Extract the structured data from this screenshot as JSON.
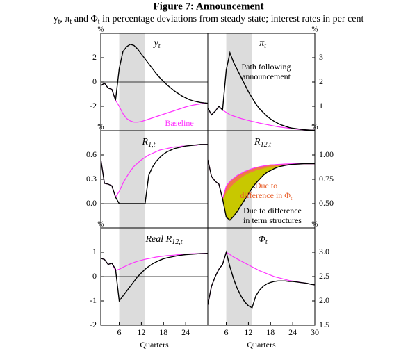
{
  "title": "Figure 7: Announcement",
  "subtitle": [
    {
      "text": "y",
      "sub": "t"
    },
    {
      "text": ", π",
      "sub": "t"
    },
    {
      "text": " and Φ",
      "sub": "t"
    },
    {
      "text": " in percentage deviations from steady state; interest rates in per cent"
    }
  ],
  "chart_data": [
    {
      "type": "line",
      "title": {
        "text": "y",
        "sub": "t"
      },
      "ylabel": "%",
      "yaxis_side": "left",
      "hline": 0,
      "shade": [
        6,
        13
      ],
      "shade_color": "#dcdcdc",
      "x": [
        1,
        2,
        3,
        4,
        5,
        6,
        7,
        8,
        9,
        10,
        11,
        12,
        13,
        14,
        15,
        16,
        17,
        18,
        19,
        20,
        21,
        22,
        23,
        24,
        25,
        26,
        27,
        28,
        29,
        30
      ],
      "xlim": [
        1,
        30
      ],
      "ylim": [
        -4,
        4
      ],
      "yticks": [
        -2,
        0,
        2
      ],
      "series": [
        {
          "color": "#000000",
          "values": [
            -0.3,
            -0.1,
            -0.5,
            -0.6,
            -1.5,
            1.1,
            2.5,
            2.9,
            3.1,
            3.0,
            2.7,
            2.3,
            1.9,
            1.5,
            1.1,
            0.7,
            0.35,
            0.05,
            -0.25,
            -0.5,
            -0.75,
            -0.95,
            -1.15,
            -1.3,
            -1.45,
            -1.55,
            -1.62,
            -1.68,
            -1.72,
            -1.75
          ]
        },
        {
          "color": "#ff33ff",
          "values": [
            -0.3,
            -0.1,
            -0.5,
            -0.6,
            -1.5,
            -2.0,
            -2.6,
            -3.0,
            -3.2,
            -3.3,
            -3.3,
            -3.25,
            -3.15,
            -3.05,
            -2.95,
            -2.85,
            -2.75,
            -2.65,
            -2.55,
            -2.45,
            -2.35,
            -2.25,
            -2.15,
            -2.05,
            -1.97,
            -1.9,
            -1.85,
            -1.8,
            -1.77,
            -1.75
          ]
        }
      ],
      "annotations": [
        {
          "lines": [
            "Baseline"
          ],
          "color": "#ff33ff"
        }
      ]
    },
    {
      "type": "line",
      "title": {
        "text": "π",
        "sub": "t"
      },
      "ylabel": "%",
      "yaxis_side": "right",
      "shade": [
        6,
        13
      ],
      "shade_color": "#dcdcdc",
      "x": [
        1,
        2,
        3,
        4,
        5,
        6,
        7,
        8,
        9,
        10,
        11,
        12,
        13,
        14,
        15,
        16,
        17,
        18,
        19,
        20,
        21,
        22,
        23,
        24,
        25,
        26,
        27,
        28,
        29,
        30
      ],
      "xlim": [
        1,
        30
      ],
      "ylim": [
        0,
        4
      ],
      "yticks": [
        1,
        2,
        3
      ],
      "series": [
        {
          "color": "#000000",
          "values": [
            0.93,
            0.65,
            0.8,
            1.0,
            0.85,
            2.5,
            3.2,
            2.8,
            2.5,
            2.2,
            1.9,
            1.6,
            1.35,
            1.1,
            0.9,
            0.75,
            0.6,
            0.48,
            0.38,
            0.3,
            0.23,
            0.18,
            0.13,
            0.1,
            0.08,
            0.06,
            0.04,
            0.03,
            0.02,
            0.02
          ]
        },
        {
          "color": "#ff33ff",
          "values": [
            0.93,
            0.65,
            0.8,
            1.0,
            0.85,
            0.75,
            0.65,
            0.6,
            0.55,
            0.5,
            0.46,
            0.42,
            0.38,
            0.35,
            0.31,
            0.28,
            0.25,
            0.22,
            0.19,
            0.16,
            0.14,
            0.12,
            0.1,
            0.08,
            0.06,
            0.05,
            0.04,
            0.03,
            0.02,
            0.02
          ]
        }
      ],
      "annotations": [
        {
          "lines": [
            "Path following",
            "announcement"
          ],
          "color": "#000000"
        }
      ]
    },
    {
      "type": "line",
      "title": {
        "text": "R",
        "sub": "1,t"
      },
      "ylabel": "%",
      "yaxis_side": "left",
      "hline": 0,
      "shade": [
        6,
        13
      ],
      "shade_color": "#dcdcdc",
      "x": [
        1,
        2,
        3,
        4,
        5,
        6,
        7,
        8,
        9,
        10,
        11,
        12,
        13,
        14,
        15,
        16,
        17,
        18,
        19,
        20,
        21,
        22,
        23,
        24,
        25,
        26,
        27,
        28,
        29,
        30
      ],
      "xlim": [
        1,
        30
      ],
      "ylim": [
        -0.3,
        0.9
      ],
      "yticks": [
        {
          "value": 0,
          "label": "0.0"
        },
        0.3,
        0.6
      ],
      "series": [
        {
          "color": "#000000",
          "values": [
            0.55,
            0.25,
            0.24,
            0.22,
            0.08,
            0,
            0,
            0,
            0,
            0,
            0,
            0,
            0,
            0.35,
            0.45,
            0.52,
            0.57,
            0.61,
            0.64,
            0.66,
            0.68,
            0.69,
            0.7,
            0.71,
            0.715,
            0.72,
            0.725,
            0.73,
            0.73,
            0.73
          ]
        },
        {
          "color": "#ff33ff",
          "values": [
            0.55,
            0.25,
            0.24,
            0.22,
            0.08,
            0.15,
            0.25,
            0.33,
            0.4,
            0.46,
            0.5,
            0.54,
            0.57,
            0.6,
            0.62,
            0.64,
            0.66,
            0.67,
            0.68,
            0.69,
            0.7,
            0.7,
            0.71,
            0.71,
            0.72,
            0.72,
            0.72,
            0.73,
            0.73,
            0.73
          ]
        }
      ]
    },
    {
      "type": "line",
      "title": {
        "text": "R",
        "sub": "12,t"
      },
      "ylabel": "%",
      "yaxis_side": "right",
      "shade": [
        6,
        13
      ],
      "shade_color": "#dcdcdc",
      "fill_colors": [
        "#c8c800",
        "#f07848"
      ],
      "x": [
        1,
        2,
        3,
        4,
        5,
        6,
        7,
        8,
        9,
        10,
        11,
        12,
        13,
        14,
        15,
        16,
        17,
        18,
        19,
        20,
        21,
        22,
        23,
        24,
        25,
        26,
        27,
        28,
        29,
        30
      ],
      "xlim": [
        1,
        30
      ],
      "ylim": [
        0.25,
        1.25
      ],
      "yticks": [
        {
          "value": 0.5,
          "label": "0.50"
        },
        0.75,
        {
          "value": 1,
          "label": "1.00"
        }
      ],
      "series": [
        {
          "color": "#000000",
          "values": [
            0.95,
            0.78,
            0.73,
            0.7,
            0.55,
            0.36,
            0.33,
            0.37,
            0.42,
            0.48,
            0.54,
            0.6,
            0.66,
            0.71,
            0.75,
            0.79,
            0.82,
            0.84,
            0.86,
            0.875,
            0.885,
            0.893,
            0.9,
            0.903,
            0.906,
            0.908,
            0.91,
            0.91,
            0.91,
            0.91
          ]
        },
        {
          "color": "#ff33ff",
          "values": [
            0.95,
            0.78,
            0.73,
            0.7,
            0.55,
            0.68,
            0.73,
            0.76,
            0.79,
            0.81,
            0.83,
            0.845,
            0.86,
            0.87,
            0.88,
            0.887,
            0.893,
            0.898,
            0.9,
            0.903,
            0.905,
            0.907,
            0.908,
            0.909,
            0.91,
            0.91,
            0.91,
            0.91,
            0.91,
            0.91
          ]
        },
        {
          "color": "#f07848",
          "values": [
            0.95,
            0.78,
            0.73,
            0.7,
            0.55,
            0.62,
            0.67,
            0.71,
            0.74,
            0.77,
            0.795,
            0.815,
            0.83,
            0.845,
            0.855,
            0.865,
            0.873,
            0.88,
            0.886,
            0.891,
            0.895,
            0.899,
            0.902,
            0.904,
            0.906,
            0.908,
            0.91,
            0.91,
            0.91,
            0.91
          ]
        }
      ],
      "annotations": [
        {
          "lines": [
            "Due to",
            {
              "text": "difference in Φ",
              "sub": "t"
            }
          ],
          "color": "#e8602c"
        },
        {
          "lines": [
            "Due to difference",
            "in term structures"
          ],
          "color": "#000000"
        }
      ]
    },
    {
      "type": "line",
      "title": {
        "text": "Real R",
        "sub": "12,t"
      },
      "ylabel": "%",
      "yaxis_side": "left",
      "hline": 0,
      "shade": [
        6,
        13
      ],
      "shade_color": "#dcdcdc",
      "xlabel": "Quarters",
      "x": [
        1,
        2,
        3,
        4,
        5,
        6,
        7,
        8,
        9,
        10,
        11,
        12,
        13,
        14,
        15,
        16,
        17,
        18,
        19,
        20,
        21,
        22,
        23,
        24,
        25,
        26,
        27,
        28,
        29,
        30
      ],
      "xlim": [
        1,
        30
      ],
      "xticks": [
        6,
        12,
        18,
        24
      ],
      "ylim": [
        -2,
        2
      ],
      "yticks": [
        -2,
        -1,
        0,
        1
      ],
      "series": [
        {
          "color": "#000000",
          "values": [
            0.75,
            0.7,
            0.5,
            0.55,
            0.3,
            -1.0,
            -0.8,
            -0.6,
            -0.4,
            -0.2,
            0.0,
            0.15,
            0.3,
            0.42,
            0.52,
            0.6,
            0.67,
            0.73,
            0.77,
            0.8,
            0.83,
            0.86,
            0.88,
            0.9,
            0.91,
            0.92,
            0.93,
            0.94,
            0.945,
            0.95
          ]
        },
        {
          "color": "#ff33ff",
          "values": [
            0.75,
            0.7,
            0.5,
            0.55,
            0.25,
            0.3,
            0.38,
            0.45,
            0.52,
            0.58,
            0.63,
            0.67,
            0.71,
            0.74,
            0.77,
            0.8,
            0.82,
            0.84,
            0.86,
            0.87,
            0.88,
            0.9,
            0.91,
            0.92,
            0.93,
            0.935,
            0.94,
            0.945,
            0.95,
            0.95
          ]
        }
      ]
    },
    {
      "type": "line",
      "title": {
        "text": "Φ",
        "sub": "t"
      },
      "ylabel": "%",
      "yaxis_side": "right",
      "shade": [
        6,
        13
      ],
      "shade_color": "#dcdcdc",
      "xlabel": "Quarters",
      "x": [
        1,
        2,
        3,
        4,
        5,
        6,
        7,
        8,
        9,
        10,
        11,
        12,
        13,
        14,
        15,
        16,
        17,
        18,
        19,
        20,
        21,
        22,
        23,
        24,
        25,
        26,
        27,
        28,
        29,
        30
      ],
      "xlim": [
        1,
        30
      ],
      "xticks": [
        6,
        12,
        18,
        24,
        30
      ],
      "ylim": [
        1.5,
        3.5
      ],
      "yticks": [
        1.5,
        {
          "value": 2,
          "label": "2.0"
        },
        2.5,
        {
          "value": 3,
          "label": "3.0"
        }
      ],
      "series": [
        {
          "color": "#000000",
          "values": [
            1.92,
            2.3,
            2.5,
            2.65,
            2.75,
            3.0,
            2.7,
            2.45,
            2.25,
            2.1,
            1.98,
            1.9,
            1.86,
            2.1,
            2.22,
            2.3,
            2.35,
            2.38,
            2.4,
            2.41,
            2.41,
            2.41,
            2.4,
            2.4,
            2.39,
            2.38,
            2.37,
            2.36,
            2.34,
            2.33
          ]
        },
        {
          "color": "#ff33ff",
          "values": [
            1.92,
            2.3,
            2.5,
            2.65,
            2.75,
            3.0,
            2.95,
            2.9,
            2.86,
            2.82,
            2.78,
            2.74,
            2.7,
            2.66,
            2.62,
            2.59,
            2.56,
            2.53,
            2.5,
            2.48,
            2.46,
            2.44,
            2.42,
            2.41,
            2.4,
            2.38,
            2.37,
            2.36,
            2.34,
            2.33
          ]
        }
      ]
    }
  ]
}
